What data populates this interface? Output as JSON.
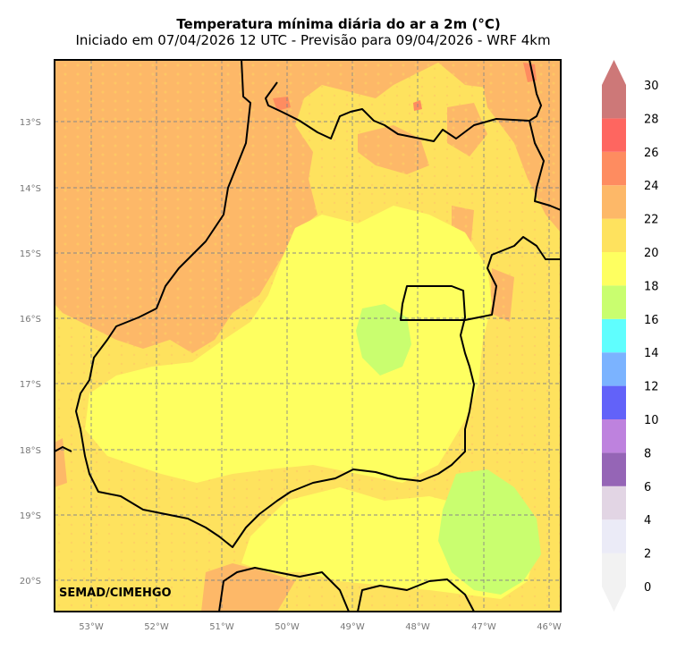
{
  "title": "Temperatura mínima diária do ar a 2m (°C)",
  "subtitle": "Iniciado em 07/04/2026 12 UTC - Previsão para 09/04/2026 - WRF 4km",
  "credit": "SEMAD/CIMEHGO",
  "longitude_labels": [
    "53°W",
    "52°W",
    "51°W",
    "50°W",
    "49°W",
    "48°W",
    "47°W",
    "46°W"
  ],
  "latitude_labels": [
    "13°S",
    "14°S",
    "15°S",
    "16°S",
    "17°S",
    "18°S",
    "19°S",
    "20°S"
  ],
  "colorbar": {
    "levels": [
      "0",
      "2",
      "4",
      "6",
      "8",
      "10",
      "12",
      "14",
      "16",
      "18",
      "20",
      "22",
      "24",
      "26",
      "28",
      "30"
    ],
    "colors": [
      "#f2f2f2",
      "#ebebf7",
      "#e2d5e4",
      "#9565b6",
      "#be82de",
      "#6262f9",
      "#7bb3ff",
      "#5ffefe",
      "#c9fe6f",
      "#feff60",
      "#fee25e",
      "#fdb868",
      "#fe8c60",
      "#fe6660",
      "#cd7878",
      "#cd7878"
    ]
  }
}
